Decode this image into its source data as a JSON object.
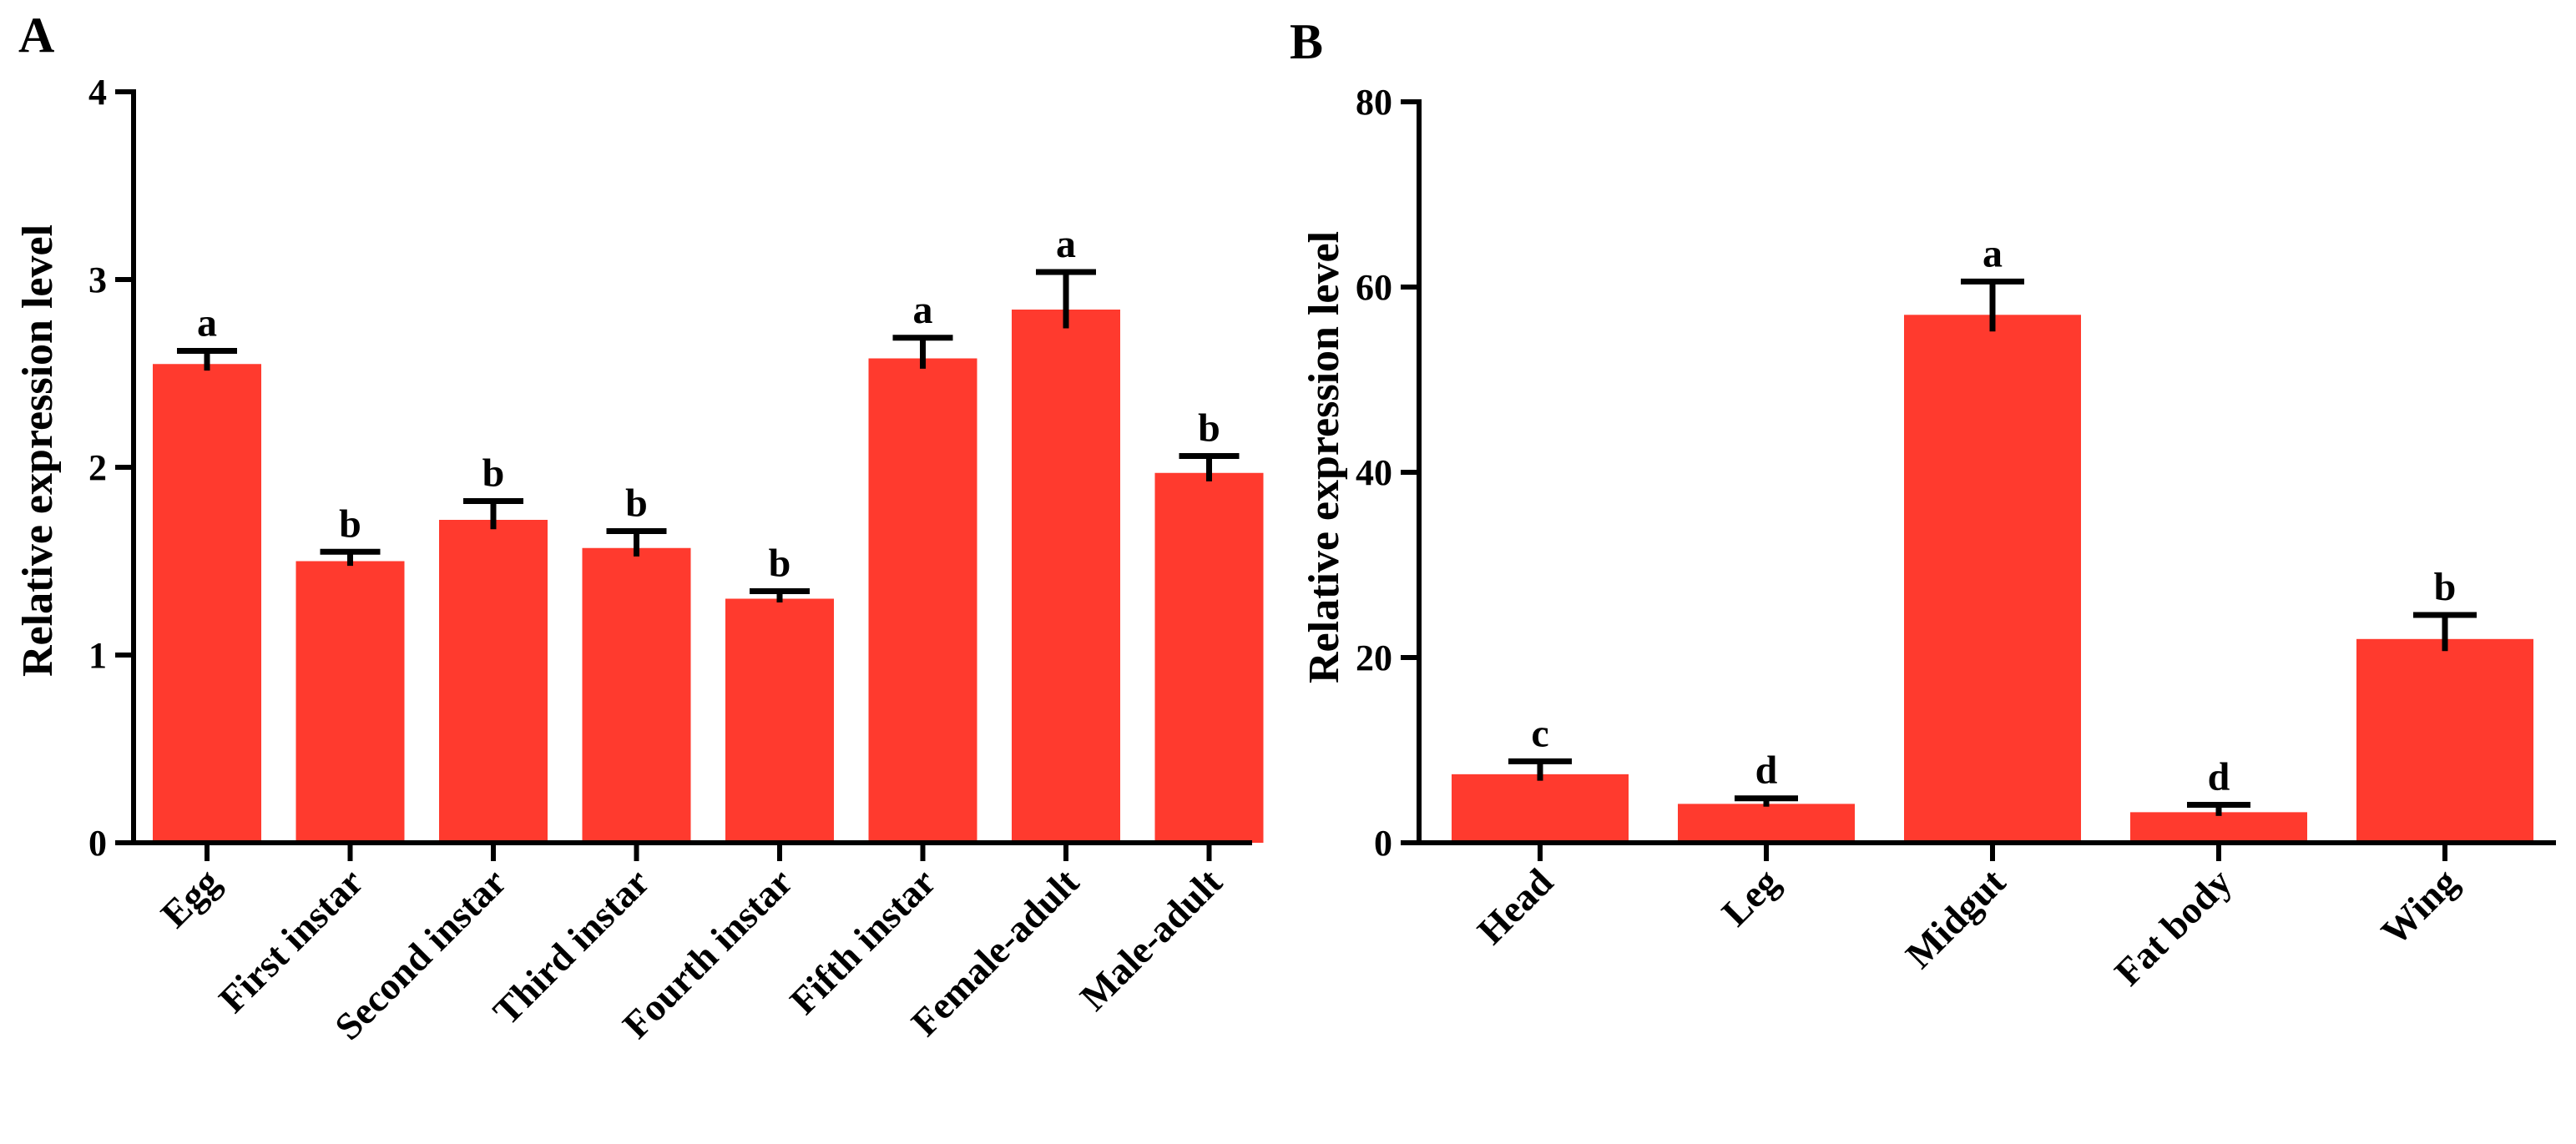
{
  "chart_data": [
    {
      "panel": "A",
      "type": "bar",
      "ylabel": "Relative expression level",
      "xlabel": "",
      "ylim": [
        0,
        4
      ],
      "yticks": [
        0,
        1,
        2,
        3,
        4
      ],
      "categories": [
        "Egg",
        "First instar",
        "Second instar",
        "Third instar",
        "Fourth instar",
        "Fifth instar",
        "Female-adult",
        "Male-adult"
      ],
      "values": [
        2.55,
        1.5,
        1.72,
        1.57,
        1.3,
        2.58,
        2.84,
        1.97
      ],
      "errors": [
        0.07,
        0.05,
        0.1,
        0.09,
        0.04,
        0.11,
        0.2,
        0.09
      ],
      "significance": [
        "a",
        "b",
        "b",
        "b",
        "b",
        "a",
        "a",
        "b"
      ],
      "bar_color": "#ff3a2e",
      "grid": false
    },
    {
      "panel": "B",
      "type": "bar",
      "ylabel": "Relative expression level",
      "xlabel": "",
      "ylim": [
        0,
        80
      ],
      "yticks": [
        0,
        20,
        40,
        60,
        80
      ],
      "categories": [
        "Head",
        "Leg",
        "Midgut",
        "Fat body",
        "Wing"
      ],
      "values": [
        7.4,
        4.2,
        57.0,
        3.3,
        22.0
      ],
      "errors": [
        1.4,
        0.6,
        3.6,
        0.8,
        2.6
      ],
      "significance": [
        "c",
        "d",
        "a",
        "d",
        "b"
      ],
      "bar_color": "#ff3a2e",
      "grid": false
    }
  ]
}
